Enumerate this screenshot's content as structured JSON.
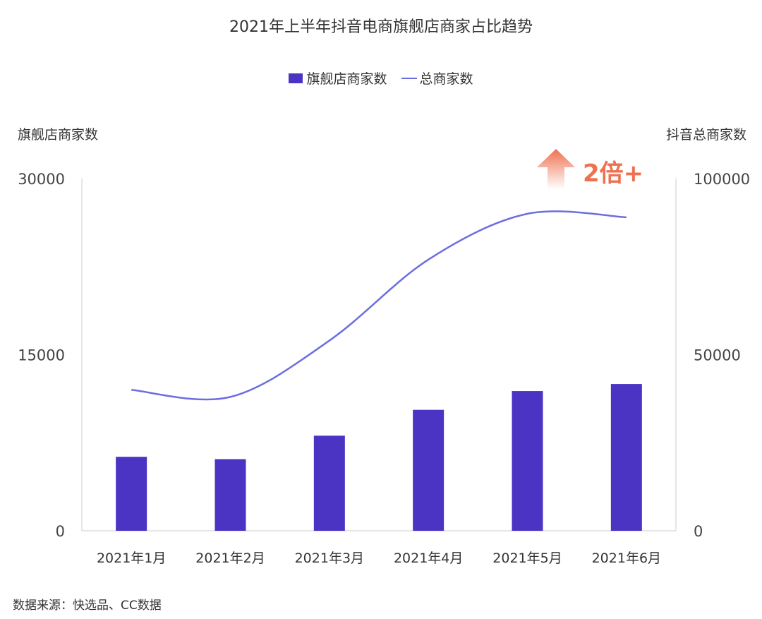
{
  "header": {
    "title": "2021年上半年抖音电商旗舰店商家占比趋势"
  },
  "legend": {
    "bar_label": "旗舰店商家数",
    "line_label": "总商家数"
  },
  "axes": {
    "left_title": "旗舰店商家数",
    "right_title": "抖音总商家数"
  },
  "annotation": {
    "text": "2倍+",
    "color": "#ee7151"
  },
  "footer": {
    "source": "数据来源：快选品、CC数据"
  },
  "colors": {
    "bar": "#4b33c4",
    "line": "#6c6ee0",
    "axis": "#cccccc",
    "arrow": "#ee7151"
  },
  "chart_data": {
    "type": "bar",
    "title": "2021年上半年抖音电商旗舰店商家占比趋势",
    "categories": [
      "2021年1月",
      "2021年2月",
      "2021年3月",
      "2021年4月",
      "2021年5月",
      "2021年6月"
    ],
    "series": [
      {
        "name": "旗舰店商家数",
        "type": "bar",
        "axis": "left",
        "values": [
          6300,
          6100,
          8100,
          10300,
          11900,
          12500
        ]
      },
      {
        "name": "总商家数",
        "type": "line",
        "axis": "right",
        "smooth": true,
        "values": [
          40000,
          38000,
          54000,
          77000,
          90000,
          89000
        ]
      }
    ],
    "y_left": {
      "label": "旗舰店商家数",
      "lim": [
        0,
        30000
      ],
      "ticks": [
        0,
        15000,
        30000
      ],
      "tick_labels": [
        "0",
        "15000",
        "30000"
      ]
    },
    "y_right": {
      "label": "抖音总商家数",
      "lim": [
        0,
        100000
      ],
      "ticks": [
        0,
        50000,
        100000
      ],
      "tick_labels": [
        "0",
        "50000",
        "100000"
      ]
    },
    "grid": false,
    "legend": "top-center"
  }
}
